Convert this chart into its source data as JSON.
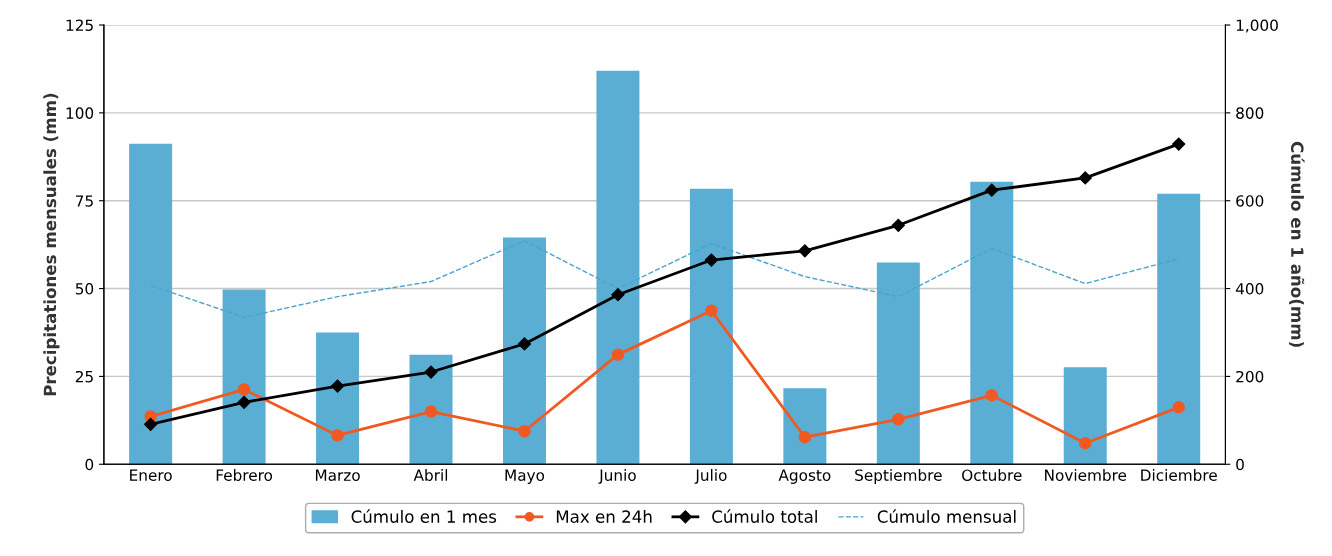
{
  "chart_data": {
    "type": "bar",
    "ylabel": "Precipitationes mensuales (mm)",
    "y2label": "Cúmulo en 1 año(mm)",
    "categories": [
      "Enero",
      "Febrero",
      "Marzo",
      "Abril",
      "Mayo",
      "Junio",
      "Julio",
      "Agosto",
      "Septiembre",
      "Octubre",
      "Noviembre",
      "Diciembre"
    ],
    "series": [
      {
        "name": "Cúmulo en 1 mes",
        "color": "#5aaed3",
        "values": [
          91.2,
          49.7,
          37.5,
          31.2,
          64.5,
          112,
          78.4,
          21.6,
          57.4,
          80.4,
          27.6,
          77
        ]
      },
      {
        "name": "Max en 24h",
        "type": "line",
        "color": "#f05a22",
        "marker": "circle",
        "line_style": "solid",
        "values": [
          13.6,
          21.3,
          8.2,
          15,
          9.4,
          31.2,
          43.7,
          7.7,
          12.8,
          19.6,
          6,
          16.2
        ]
      },
      {
        "name": "Cúmulo total",
        "type": "line",
        "color": "#000000",
        "marker": "diamond",
        "line_style": "solid",
        "axis": "y2",
        "values": [
          91,
          141,
          178,
          210,
          274,
          386,
          465,
          486,
          544,
          624,
          652,
          729
        ]
      },
      {
        "name": "Cúmulo mensual",
        "type": "line",
        "color": "#4aa3cc",
        "marker": "none",
        "line_style": "dashed",
        "values": [
          50.9,
          41.8,
          47.7,
          52,
          63.6,
          50,
          62.8,
          53.4,
          47.7,
          61.4,
          51.4,
          58.5
        ]
      }
    ],
    "ylim": [
      0,
      125
    ],
    "yticks": [
      0,
      25,
      50,
      75,
      100,
      125
    ],
    "y2lim": [
      0,
      1000
    ],
    "y2ticks": [
      0,
      200,
      400,
      600,
      800,
      {
        "value": 1000,
        "label": "1,000"
      }
    ],
    "grid": true,
    "legend": "bottom"
  }
}
